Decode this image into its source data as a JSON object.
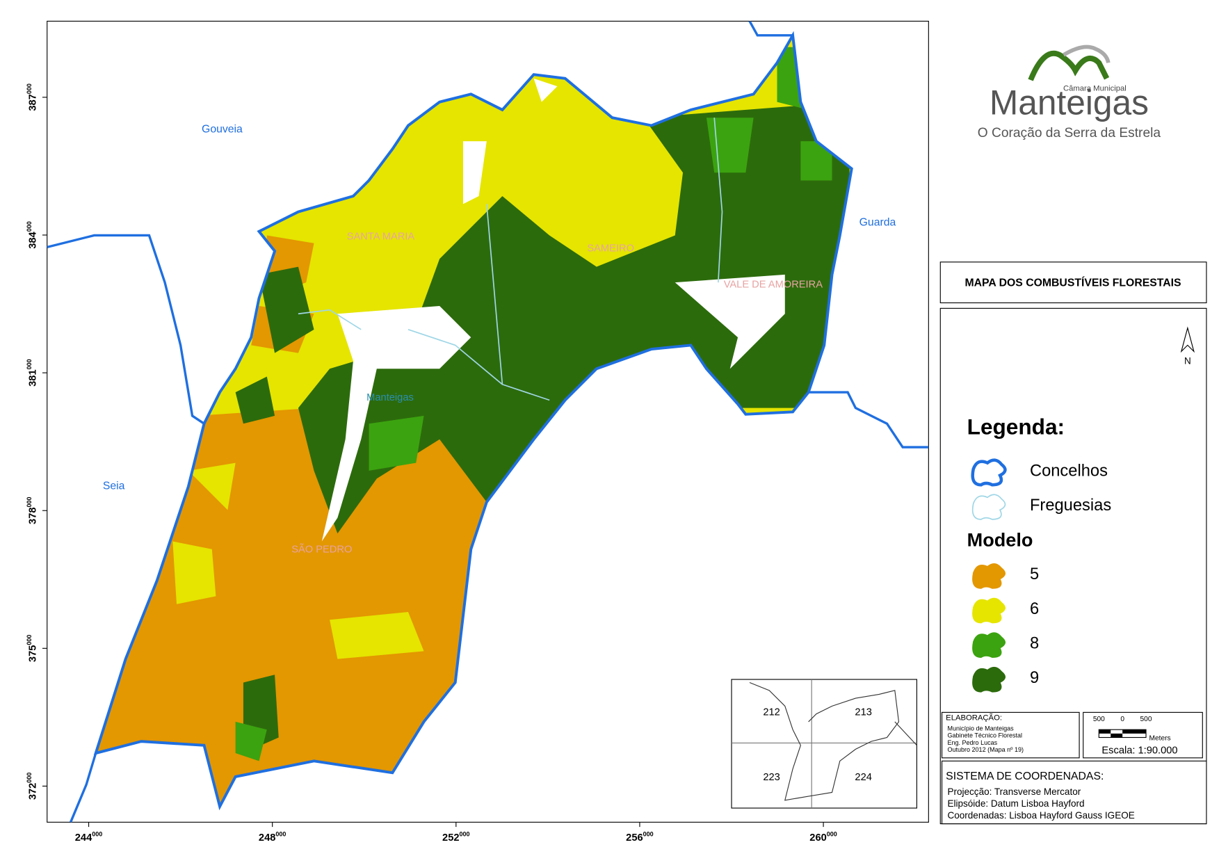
{
  "map": {
    "title": "MAPA DOS COMBUSTÍVEIS FLORESTAIS",
    "xlim": [
      243094,
      262291
    ],
    "ylim": [
      371214,
      388657
    ],
    "xticks": [
      244000,
      248000,
      252000,
      256000,
      260000
    ],
    "yticks": [
      372000,
      375000,
      378000,
      381000,
      384000,
      387000
    ],
    "neighbours": [
      "Gouveia",
      "Guarda",
      "Seia"
    ],
    "parishes": [
      "SANTA MARIA",
      "SAMEIRO",
      "VALE DE AMOREIRA",
      "SÃO PEDRO"
    ],
    "town": "Manteigas"
  },
  "logo": {
    "council": "Câmara Municipal",
    "name": "Manteigas",
    "tagline": "O Coração da Serra da Estrela"
  },
  "north": "N",
  "legend": {
    "title": "Legenda:",
    "boundaries": [
      {
        "label": "Concelhos",
        "color": "#1f6fe0"
      },
      {
        "label": "Freguesias",
        "color": "#9fd6e6"
      }
    ],
    "model_title": "Modelo",
    "models": [
      {
        "label": "5",
        "color": "#e39700"
      },
      {
        "label": "6",
        "color": "#e5e500"
      },
      {
        "label": "8",
        "color": "#3ba30f"
      },
      {
        "label": "9",
        "color": "#2c6b0c"
      }
    ]
  },
  "credits": {
    "heading": "ELABORAÇÃO:",
    "lines": [
      "Município de Manteigas",
      "Gabinete Técnico Florestal",
      "Eng. Pedro Lucas",
      "Outubro 2012 (Mapa nº 19)"
    ]
  },
  "scale": {
    "ticks": [
      "500",
      "0",
      "500"
    ],
    "unit": "Meters",
    "text": "Escala: 1:90.000"
  },
  "coordinates": {
    "heading": "SISTEMA DE COORDENADAS:",
    "lines": [
      "Projecção: Transverse Mercator",
      "Elipsóide: Datum Lisboa Hayford",
      "Coordenadas: Lisboa Hayford Gauss IGEOE"
    ]
  },
  "inset": {
    "labels": [
      "212",
      "213",
      "223",
      "224"
    ]
  }
}
